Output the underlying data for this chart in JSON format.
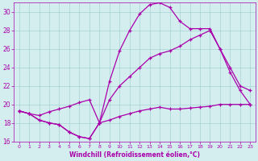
{
  "xlabel": "Windchill (Refroidissement éolien,°C)",
  "bg_color": "#d4eef0",
  "line_color": "#aa00aa",
  "xlim": [
    -0.5,
    23.5
  ],
  "ylim": [
    16,
    31
  ],
  "yticks": [
    16,
    18,
    20,
    22,
    24,
    26,
    28,
    30
  ],
  "xticks": [
    0,
    1,
    2,
    3,
    4,
    5,
    6,
    7,
    8,
    9,
    10,
    11,
    12,
    13,
    14,
    15,
    16,
    17,
    18,
    19,
    20,
    21,
    22,
    23
  ],
  "line1_x": [
    0,
    1,
    2,
    3,
    4,
    5,
    6,
    7,
    8,
    9,
    10,
    11,
    12,
    13,
    14,
    15,
    16,
    17,
    18,
    19,
    20,
    21,
    22,
    23
  ],
  "line1_y": [
    19.3,
    19.0,
    18.3,
    18.0,
    17.8,
    17.0,
    16.5,
    16.3,
    18.0,
    18.3,
    18.7,
    19.0,
    19.3,
    19.5,
    19.7,
    19.5,
    19.5,
    19.6,
    19.7,
    19.8,
    20.0,
    20.0,
    20.0,
    20.0
  ],
  "line2_x": [
    0,
    1,
    2,
    3,
    4,
    5,
    6,
    7,
    8,
    9,
    10,
    11,
    12,
    13,
    14,
    15,
    16,
    17,
    18,
    19,
    20,
    21,
    22,
    23
  ],
  "line2_y": [
    19.3,
    19.0,
    18.3,
    18.0,
    17.8,
    17.0,
    16.5,
    16.3,
    18.0,
    22.5,
    25.8,
    28.0,
    29.8,
    30.8,
    31.0,
    30.5,
    29.0,
    28.2,
    28.2,
    28.2,
    26.0,
    23.5,
    21.5,
    20.0
  ],
  "line3_x": [
    0,
    1,
    2,
    3,
    4,
    5,
    6,
    7,
    8,
    9,
    10,
    11,
    12,
    13,
    14,
    15,
    16,
    17,
    18,
    19,
    20,
    21,
    22,
    23
  ],
  "line3_y": [
    19.3,
    19.0,
    18.8,
    19.2,
    19.5,
    19.8,
    20.2,
    20.5,
    18.0,
    20.5,
    22.0,
    23.0,
    24.0,
    25.0,
    25.5,
    25.8,
    26.3,
    27.0,
    27.5,
    28.0,
    26.0,
    24.0,
    22.0,
    21.5
  ]
}
